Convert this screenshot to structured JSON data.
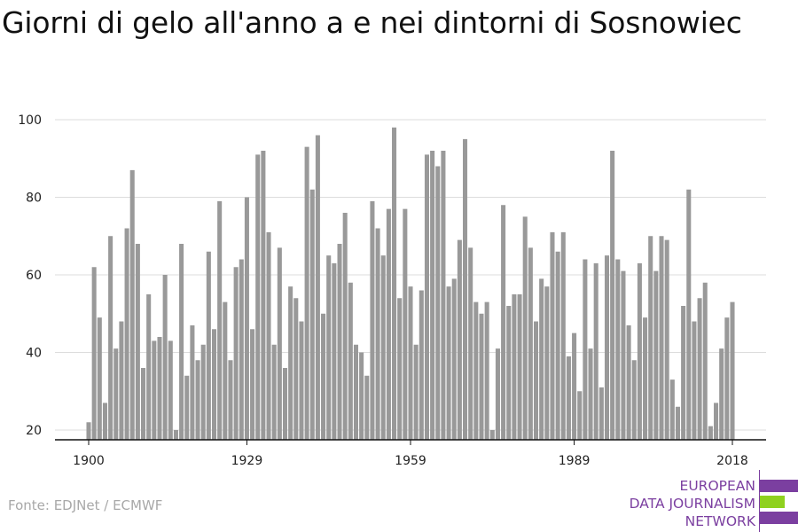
{
  "title": "Giorni di gelo all'anno a e nei dintorni di Sosnowiec",
  "source": "Fonte: EDJNet / ECMWF",
  "logo": {
    "lines": [
      "EUROPEAN",
      "DATA JOURNALISM",
      "NETWORK"
    ],
    "colors": [
      "#7b3fa0",
      "#8fd11f",
      "#7b3fa0"
    ]
  },
  "chart_data": {
    "type": "bar",
    "title": "Giorni di gelo all'anno a e nei dintorni di Sosnowiec",
    "xlabel": "",
    "ylabel": "",
    "x_start": 1900,
    "x_end": 2018,
    "xticks": [
      1900,
      1929,
      1959,
      1989,
      2018
    ],
    "yticks": [
      20,
      40,
      60,
      80,
      100
    ],
    "ylim": [
      17,
      100
    ],
    "grid": true,
    "bar_color": "#999999",
    "values": [
      22,
      62,
      49,
      27,
      70,
      41,
      48,
      72,
      87,
      68,
      36,
      55,
      43,
      44,
      60,
      43,
      20,
      68,
      34,
      47,
      38,
      42,
      66,
      46,
      79,
      53,
      38,
      62,
      64,
      80,
      46,
      91,
      92,
      71,
      42,
      67,
      36,
      57,
      54,
      48,
      93,
      82,
      96,
      50,
      65,
      63,
      68,
      76,
      58,
      42,
      40,
      34,
      79,
      72,
      65,
      77,
      98,
      54,
      77,
      57,
      42,
      56,
      91,
      92,
      88,
      92,
      57,
      59,
      69,
      95,
      67,
      53,
      50,
      53,
      20,
      41,
      78,
      52,
      55,
      55,
      75,
      67,
      48,
      59,
      57,
      71,
      66,
      71,
      39,
      45,
      30,
      64,
      41,
      63,
      31,
      65,
      92,
      64,
      61,
      47,
      38,
      63,
      49,
      70,
      61,
      70,
      69,
      33,
      26,
      52,
      82,
      48,
      54,
      58,
      21,
      27,
      41,
      49,
      53
    ]
  }
}
